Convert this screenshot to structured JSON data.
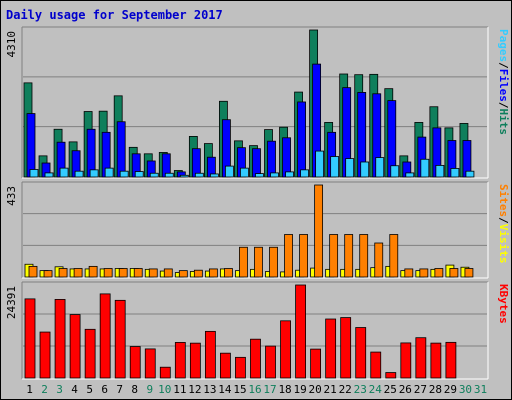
{
  "title": "Daily usage for September 2017",
  "colors": {
    "title": "#0000cc",
    "background": "#c0c0c0",
    "hits": "#0f7f5c",
    "files": "#0000ff",
    "pages": "#33ccff",
    "visits": "#ffff00",
    "sites": "#ff8000",
    "kbytes": "#ff0000",
    "weekend_day_label": "#0f7f5c",
    "weekday_label": "#000000"
  },
  "chart_data": [
    {
      "type": "bar",
      "panel": "hits-files-pages",
      "ymax_label": "4310",
      "ymax": 4310,
      "legend": [
        {
          "label": "Hits",
          "color": "#0f7f5c"
        },
        {
          "label": "Files",
          "color": "#0000ff"
        },
        {
          "label": "Pages",
          "color": "#33ccff"
        }
      ],
      "legend_sep": "/",
      "series": [
        {
          "name": "Hits",
          "values": [
            2760,
            620,
            1400,
            1030,
            1920,
            1930,
            2380,
            870,
            680,
            720,
            190,
            1190,
            980,
            2220,
            1060,
            920,
            1390,
            1460,
            2490,
            4310,
            1600,
            3020,
            3000,
            3010,
            2590,
            620,
            1600,
            2060,
            1440,
            1570
          ]
        },
        {
          "name": "Files",
          "values": [
            1860,
            410,
            1020,
            770,
            1400,
            1310,
            1620,
            680,
            470,
            680,
            150,
            830,
            580,
            1680,
            860,
            830,
            1050,
            1150,
            2200,
            3310,
            1310,
            2620,
            2480,
            2440,
            2240,
            440,
            1170,
            1440,
            1070,
            1070
          ]
        },
        {
          "name": "Pages",
          "values": [
            220,
            120,
            260,
            170,
            210,
            260,
            170,
            160,
            110,
            110,
            50,
            110,
            90,
            320,
            260,
            100,
            120,
            150,
            210,
            760,
            600,
            540,
            440,
            570,
            330,
            120,
            520,
            340,
            250,
            170
          ]
        }
      ]
    },
    {
      "type": "bar",
      "panel": "visits-sites",
      "ymax_label": "433",
      "ymax": 433,
      "legend": [
        {
          "label": "Visits",
          "color": "#ffff00"
        },
        {
          "label": "Sites",
          "color": "#ff8000"
        }
      ],
      "legend_sep": "/",
      "series": [
        {
          "name": "Visits",
          "values": [
            60,
            30,
            48,
            38,
            38,
            38,
            40,
            40,
            36,
            28,
            21,
            26,
            28,
            38,
            30,
            36,
            26,
            24,
            32,
            42,
            36,
            36,
            36,
            44,
            50,
            30,
            30,
            36,
            56,
            46
          ]
        },
        {
          "name": "Sites",
          "values": [
            50,
            30,
            40,
            40,
            50,
            40,
            40,
            40,
            38,
            38,
            30,
            32,
            38,
            40,
            140,
            140,
            140,
            200,
            200,
            433,
            200,
            200,
            200,
            160,
            200,
            38,
            38,
            40,
            40,
            40
          ]
        }
      ]
    },
    {
      "type": "bar",
      "panel": "kbytes",
      "ymax_label": "24391",
      "ymax": 24391,
      "legend": [
        {
          "label": "KBytes",
          "color": "#ff0000"
        }
      ],
      "series": [
        {
          "name": "KBytes",
          "values": [
            20750,
            12050,
            20610,
            16630,
            12770,
            22060,
            20370,
            8250,
            7630,
            2830,
            9330,
            9140,
            12230,
            6510,
            5420,
            10180,
            8370,
            15000,
            24391,
            7580,
            15470,
            15850,
            13240,
            6800,
            1430,
            9200,
            10570,
            9150,
            9350,
            0
          ]
        }
      ]
    }
  ],
  "x_labels": [
    {
      "day": "1",
      "weekend": false
    },
    {
      "day": "2",
      "weekend": true
    },
    {
      "day": "3",
      "weekend": true
    },
    {
      "day": "4",
      "weekend": false
    },
    {
      "day": "5",
      "weekend": false
    },
    {
      "day": "6",
      "weekend": false
    },
    {
      "day": "7",
      "weekend": false
    },
    {
      "day": "8",
      "weekend": false
    },
    {
      "day": "9",
      "weekend": true
    },
    {
      "day": "10",
      "weekend": true
    },
    {
      "day": "11",
      "weekend": false
    },
    {
      "day": "12",
      "weekend": false
    },
    {
      "day": "13",
      "weekend": false
    },
    {
      "day": "14",
      "weekend": false
    },
    {
      "day": "15",
      "weekend": false
    },
    {
      "day": "16",
      "weekend": true
    },
    {
      "day": "17",
      "weekend": true
    },
    {
      "day": "18",
      "weekend": false
    },
    {
      "day": "19",
      "weekend": false
    },
    {
      "day": "20",
      "weekend": false
    },
    {
      "day": "21",
      "weekend": false
    },
    {
      "day": "22",
      "weekend": false
    },
    {
      "day": "23",
      "weekend": true
    },
    {
      "day": "24",
      "weekend": true
    },
    {
      "day": "25",
      "weekend": false
    },
    {
      "day": "26",
      "weekend": false
    },
    {
      "day": "27",
      "weekend": false
    },
    {
      "day": "28",
      "weekend": false
    },
    {
      "day": "29",
      "weekend": false
    },
    {
      "day": "30",
      "weekend": true
    },
    {
      "day": "31",
      "weekend": true
    }
  ]
}
